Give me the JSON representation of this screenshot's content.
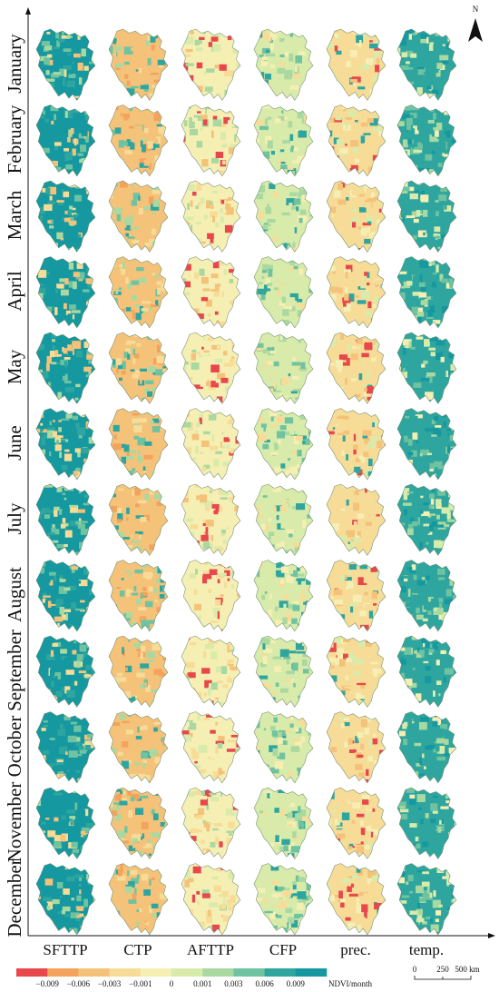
{
  "months": [
    "January",
    "February",
    "March",
    "April",
    "May",
    "June",
    "July",
    "August",
    "September",
    "October",
    "November",
    "December"
  ],
  "columns": [
    "SFTTP",
    "CTP",
    "AFTTP",
    "CFP",
    "prec.",
    "temp."
  ],
  "north_arrow": {
    "label": "N",
    "icon": "north-arrow-icon"
  },
  "legend": {
    "ticks": [
      "−0.009",
      "−0.006",
      "−0.003",
      "−0.001",
      "0",
      "0.001",
      "0.003",
      "0.006",
      "0.009"
    ],
    "unit": "NDVI/month",
    "colors": [
      "#e8474c",
      "#f4a35d",
      "#f5c27a",
      "#f7dc98",
      "#f6efb4",
      "#d9ebaa",
      "#a9d9a0",
      "#6fc3a0",
      "#2ea69f",
      "#1598a0"
    ]
  },
  "scale_bar": {
    "labels": [
      "0",
      "250",
      "500 km"
    ]
  },
  "map_tones": {
    "dominant_by_column": [
      "mixed-teal",
      "mixed-orange",
      "yellow",
      "light-green",
      "yellow-orange",
      "teal"
    ]
  }
}
